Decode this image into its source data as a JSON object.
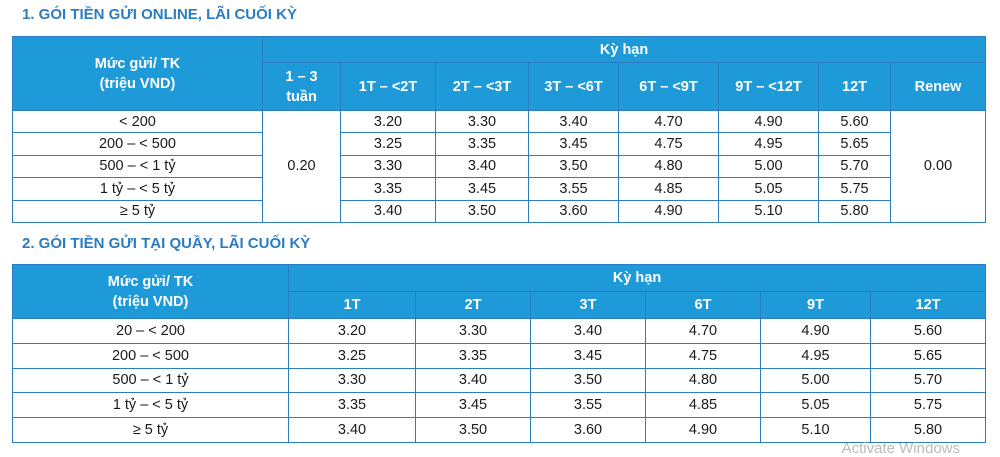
{
  "section1": {
    "title": "1. GÓI TIỀN GỬI ONLINE, LÃI CUỐI KỲ",
    "header": {
      "tier_label": [
        "Mức gửi/ TK",
        "(triệu VND)"
      ],
      "group": "Kỳ hạn",
      "first_term": [
        "1 – 3",
        "tuần"
      ],
      "terms": [
        "1T – <2T",
        "2T – <3T",
        "3T – <6T",
        "6T – <9T",
        "9T – <12T",
        "12T"
      ],
      "last_term": "Renew"
    },
    "short_term_rate": "0.20",
    "renew_rate": "0.00",
    "rows": [
      {
        "tier": "< 200",
        "rates": [
          "3.20",
          "3.30",
          "3.40",
          "4.70",
          "4.90",
          "5.60"
        ]
      },
      {
        "tier": "200 – < 500",
        "rates": [
          "3.25",
          "3.35",
          "3.45",
          "4.75",
          "4.95",
          "5.65"
        ]
      },
      {
        "tier": "500 – < 1 tỷ",
        "rates": [
          "3.30",
          "3.40",
          "3.50",
          "4.80",
          "5.00",
          "5.70"
        ]
      },
      {
        "tier": "1 tỷ – < 5 tỷ",
        "rates": [
          "3.35",
          "3.45",
          "3.55",
          "4.85",
          "5.05",
          "5.75"
        ]
      },
      {
        "tier": "≥ 5 tỷ",
        "rates": [
          "3.40",
          "3.50",
          "3.60",
          "4.90",
          "5.10",
          "5.80"
        ]
      }
    ]
  },
  "section2": {
    "title": "2. GÓI TIỀN GỬI TẠI QUẦY, LÃI CUỐI KỲ",
    "header": {
      "tier_label": [
        "Mức gửi/ TK",
        "(triệu VND)"
      ],
      "group": "Kỳ hạn",
      "terms": [
        "1T",
        "2T",
        "3T",
        "6T",
        "9T",
        "12T"
      ]
    },
    "rows": [
      {
        "tier": "20 – < 200",
        "rates": [
          "3.20",
          "3.30",
          "3.40",
          "4.70",
          "4.90",
          "5.60"
        ]
      },
      {
        "tier": "200 – < 500",
        "rates": [
          "3.25",
          "3.35",
          "3.45",
          "4.75",
          "4.95",
          "5.65"
        ]
      },
      {
        "tier": "500 – < 1 tỷ",
        "rates": [
          "3.30",
          "3.40",
          "3.50",
          "4.80",
          "5.00",
          "5.70"
        ]
      },
      {
        "tier": "1 tỷ – < 5 tỷ",
        "rates": [
          "3.35",
          "3.45",
          "3.55",
          "4.85",
          "5.05",
          "5.75"
        ]
      },
      {
        "tier": "≥ 5 tỷ",
        "rates": [
          "3.40",
          "3.50",
          "3.60",
          "4.90",
          "5.10",
          "5.80"
        ]
      }
    ]
  },
  "watermark": "Activate Windows"
}
